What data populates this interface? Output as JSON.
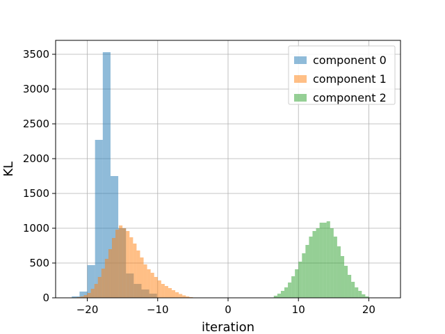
{
  "chart_data": {
    "type": "bar",
    "subtype": "overlapping-histogram",
    "xlabel": "iteration",
    "ylabel": "KL",
    "xlim": [
      -24.5,
      24.5
    ],
    "ylim": [
      0,
      3700
    ],
    "xticks": [
      -20,
      -10,
      0,
      10,
      20
    ],
    "xtick_labels": [
      "−20",
      "−10",
      "0",
      "10",
      "20"
    ],
    "yticks": [
      0,
      500,
      1000,
      1500,
      2000,
      2500,
      3000,
      3500
    ],
    "ytick_labels": [
      "0",
      "500",
      "1000",
      "1500",
      "2000",
      "2500",
      "3000",
      "3500"
    ],
    "grid": true,
    "legend_position": "upper right",
    "series": [
      {
        "name": "component 0",
        "color": "#1f77b4",
        "alpha": 0.5,
        "bin_edges": [
          -22.2,
          -21.1,
          -20.0,
          -18.9,
          -17.8,
          -16.7,
          -15.6,
          -14.5,
          -13.4,
          -12.3,
          -11.2,
          -10.1
        ],
        "counts": [
          20,
          90,
          470,
          2270,
          3530,
          1750,
          1000,
          350,
          200,
          120,
          60
        ]
      },
      {
        "name": "component 1",
        "color": "#ff7f0e",
        "alpha": 0.5,
        "bin_edges": [
          -22.0,
          -21.5,
          -21.0,
          -20.5,
          -20.0,
          -19.5,
          -19.0,
          -18.5,
          -18.0,
          -17.5,
          -17.0,
          -16.5,
          -16.0,
          -15.5,
          -15.0,
          -14.5,
          -14.0,
          -13.5,
          -13.0,
          -12.5,
          -12.0,
          -11.5,
          -11.0,
          -10.5,
          -10.0,
          -9.5,
          -9.0,
          -8.5,
          -8.0,
          -7.5,
          -7.0,
          -6.5,
          -6.0,
          -5.5,
          -5.0
        ],
        "counts": [
          5,
          10,
          20,
          40,
          70,
          130,
          200,
          300,
          420,
          560,
          700,
          860,
          980,
          1040,
          1000,
          960,
          870,
          780,
          680,
          580,
          480,
          410,
          360,
          300,
          250,
          200,
          170,
          140,
          110,
          80,
          55,
          35,
          20,
          10
        ]
      },
      {
        "name": "component 2",
        "color": "#2ca02c",
        "alpha": 0.5,
        "bin_edges": [
          6.5,
          7.0,
          7.5,
          8.0,
          8.5,
          9.0,
          9.5,
          10.0,
          10.5,
          11.0,
          11.5,
          12.0,
          12.5,
          13.0,
          13.5,
          14.0,
          14.5,
          15.0,
          15.5,
          16.0,
          16.5,
          17.0,
          17.5,
          18.0,
          18.5,
          19.0,
          19.5,
          20.0
        ],
        "counts": [
          30,
          60,
          100,
          150,
          220,
          310,
          410,
          520,
          640,
          760,
          880,
          960,
          1000,
          1080,
          1080,
          1100,
          1000,
          880,
          740,
          600,
          460,
          330,
          230,
          150,
          100,
          50,
          20
        ]
      }
    ]
  }
}
